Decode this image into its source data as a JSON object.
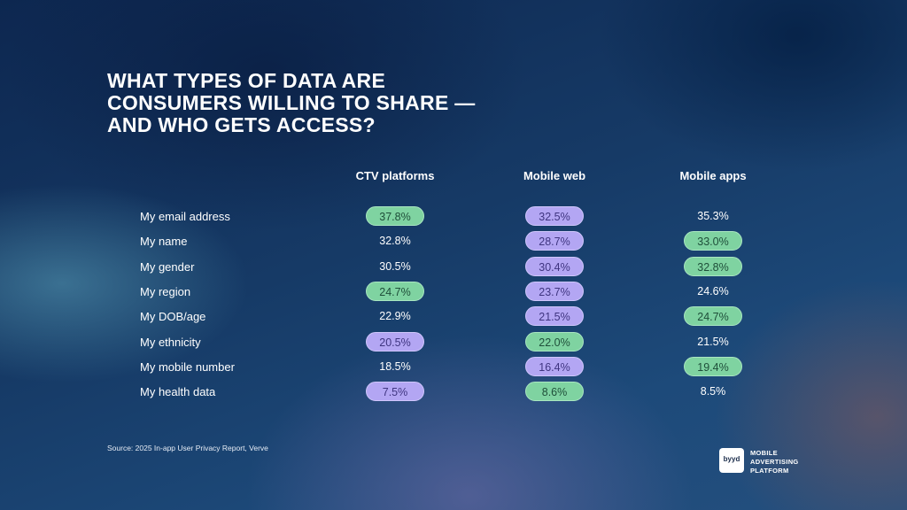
{
  "title": "WHAT TYPES OF DATA ARE CONSUMERS WILLING TO SHARE — AND WHO GETS ACCESS?",
  "source": "Source: 2025 In-app User Privacy Report, Verve",
  "logo": {
    "mark": "byyd",
    "lines": [
      "MOBILE",
      "ADVERTISING",
      "PLATFORM"
    ]
  },
  "colors": {
    "highest": "#7fd3a1",
    "lowest": "#b3a6f3"
  },
  "chart_data": {
    "type": "table",
    "columns": [
      "CTV platforms",
      "Mobile web",
      "Mobile apps"
    ],
    "rows": [
      {
        "label": "My email address",
        "values": [
          "37.8%",
          "32.5%",
          "35.3%"
        ],
        "highlight": [
          "green",
          "purple",
          "none"
        ]
      },
      {
        "label": "My name",
        "values": [
          "32.8%",
          "28.7%",
          "33.0%"
        ],
        "highlight": [
          "none",
          "purple",
          "green"
        ]
      },
      {
        "label": "My gender",
        "values": [
          "30.5%",
          "30.4%",
          "32.8%"
        ],
        "highlight": [
          "none",
          "purple",
          "green"
        ]
      },
      {
        "label": "My region",
        "values": [
          "24.7%",
          "23.7%",
          "24.6%"
        ],
        "highlight": [
          "green",
          "purple",
          "none"
        ]
      },
      {
        "label": "My DOB/age",
        "values": [
          "22.9%",
          "21.5%",
          "24.7%"
        ],
        "highlight": [
          "none",
          "purple",
          "green"
        ]
      },
      {
        "label": "My ethnicity",
        "values": [
          "20.5%",
          "22.0%",
          "21.5%"
        ],
        "highlight": [
          "purple",
          "green",
          "none"
        ]
      },
      {
        "label": "My mobile number",
        "values": [
          "18.5%",
          "16.4%",
          "19.4%"
        ],
        "highlight": [
          "none",
          "purple",
          "green"
        ]
      },
      {
        "label": "My health data",
        "values": [
          "7.5%",
          "8.6%",
          "8.5%"
        ],
        "highlight": [
          "purple",
          "green",
          "none"
        ]
      }
    ]
  }
}
